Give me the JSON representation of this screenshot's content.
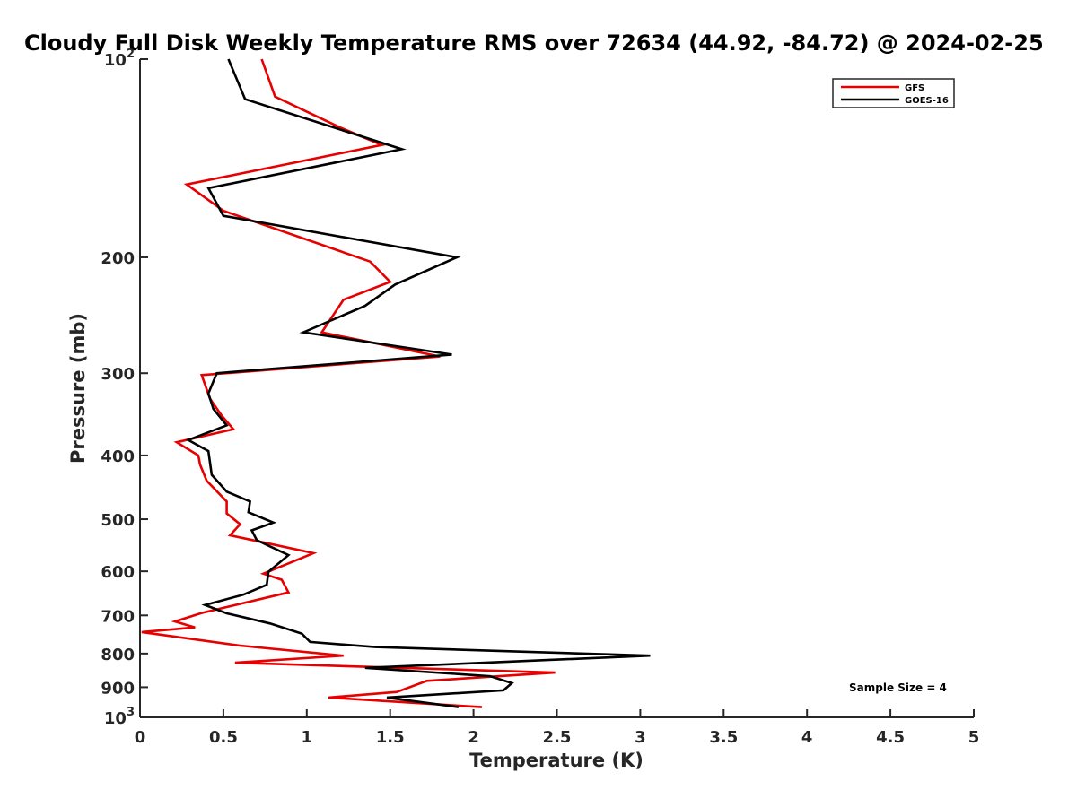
{
  "chart_data": {
    "type": "line",
    "title": "Cloudy Full Disk Weekly Temperature RMS over 72634 (44.92, -84.72) @ 2024-02-25",
    "xlabel": "Temperature (K)",
    "ylabel": "Pressure (mb)",
    "xlim": [
      0,
      5
    ],
    "ylim": [
      100,
      1000
    ],
    "y_scale": "log",
    "y_reversed": true,
    "grid": false,
    "legend_position": "top-right",
    "x_ticks": [
      "0",
      "0.5",
      "1",
      "1.5",
      "2",
      "2.5",
      "3",
      "3.5",
      "4",
      "4.5",
      "5"
    ],
    "y_ticks": [
      {
        "value": 100,
        "base": "10",
        "exp": "2"
      },
      {
        "value": 200,
        "label": "200"
      },
      {
        "value": 300,
        "label": "300"
      },
      {
        "value": 400,
        "label": "400"
      },
      {
        "value": 500,
        "label": "500"
      },
      {
        "value": 600,
        "label": "600"
      },
      {
        "value": 700,
        "label": "700"
      },
      {
        "value": 800,
        "label": "800"
      },
      {
        "value": 900,
        "label": "900"
      },
      {
        "value": 1000,
        "base": "10",
        "exp": "3"
      }
    ],
    "annotation": "Sample Size = 4",
    "series": [
      {
        "name": "GFS",
        "color": "#e60000",
        "points": [
          [
            0.73,
            100
          ],
          [
            0.81,
            114
          ],
          [
            1.2,
            127
          ],
          [
            1.45,
            135
          ],
          [
            0.28,
            155
          ],
          [
            0.5,
            170
          ],
          [
            1.38,
            203
          ],
          [
            1.5,
            218
          ],
          [
            1.22,
            232
          ],
          [
            1.09,
            260
          ],
          [
            1.8,
            283
          ],
          [
            0.37,
            302
          ],
          [
            0.42,
            328
          ],
          [
            0.49,
            348
          ],
          [
            0.56,
            365
          ],
          [
            0.22,
            382
          ],
          [
            0.35,
            400
          ],
          [
            0.36,
            413
          ],
          [
            0.4,
            437
          ],
          [
            0.52,
            470
          ],
          [
            0.52,
            490
          ],
          [
            0.6,
            509
          ],
          [
            0.54,
            529
          ],
          [
            0.75,
            543
          ],
          [
            1.04,
            563
          ],
          [
            0.74,
            605
          ],
          [
            0.85,
            618
          ],
          [
            0.89,
            646
          ],
          [
            0.37,
            694
          ],
          [
            0.21,
            715
          ],
          [
            0.33,
            730
          ],
          [
            0.01,
            742
          ],
          [
            0.6,
            778
          ],
          [
            1.22,
            806
          ],
          [
            0.57,
            826
          ],
          [
            2.49,
            855
          ],
          [
            1.72,
            880
          ],
          [
            1.54,
            915
          ],
          [
            1.13,
            933
          ],
          [
            2.05,
            965
          ]
        ]
      },
      {
        "name": "GOES-16",
        "color": "#000000",
        "points": [
          [
            0.53,
            100
          ],
          [
            0.63,
            115
          ],
          [
            1.57,
            137
          ],
          [
            0.41,
            157
          ],
          [
            0.5,
            173
          ],
          [
            1.9,
            200
          ],
          [
            1.53,
            220
          ],
          [
            1.35,
            237
          ],
          [
            0.98,
            260
          ],
          [
            1.87,
            281
          ],
          [
            0.46,
            300
          ],
          [
            0.41,
            322
          ],
          [
            0.44,
            340
          ],
          [
            0.52,
            360
          ],
          [
            0.29,
            379
          ],
          [
            0.41,
            394
          ],
          [
            0.43,
            428
          ],
          [
            0.52,
            454
          ],
          [
            0.66,
            470
          ],
          [
            0.65,
            488
          ],
          [
            0.8,
            506
          ],
          [
            0.67,
            520
          ],
          [
            0.7,
            538
          ],
          [
            0.89,
            567
          ],
          [
            0.77,
            601
          ],
          [
            0.76,
            629
          ],
          [
            0.62,
            651
          ],
          [
            0.39,
            675
          ],
          [
            0.52,
            695
          ],
          [
            0.78,
            720
          ],
          [
            0.97,
            746
          ],
          [
            1.02,
            768
          ],
          [
            1.41,
            782
          ],
          [
            3.06,
            806
          ],
          [
            1.35,
            841
          ],
          [
            2.1,
            866
          ],
          [
            2.23,
            887
          ],
          [
            2.18,
            910
          ],
          [
            1.48,
            933
          ],
          [
            1.91,
            965
          ]
        ]
      }
    ]
  }
}
